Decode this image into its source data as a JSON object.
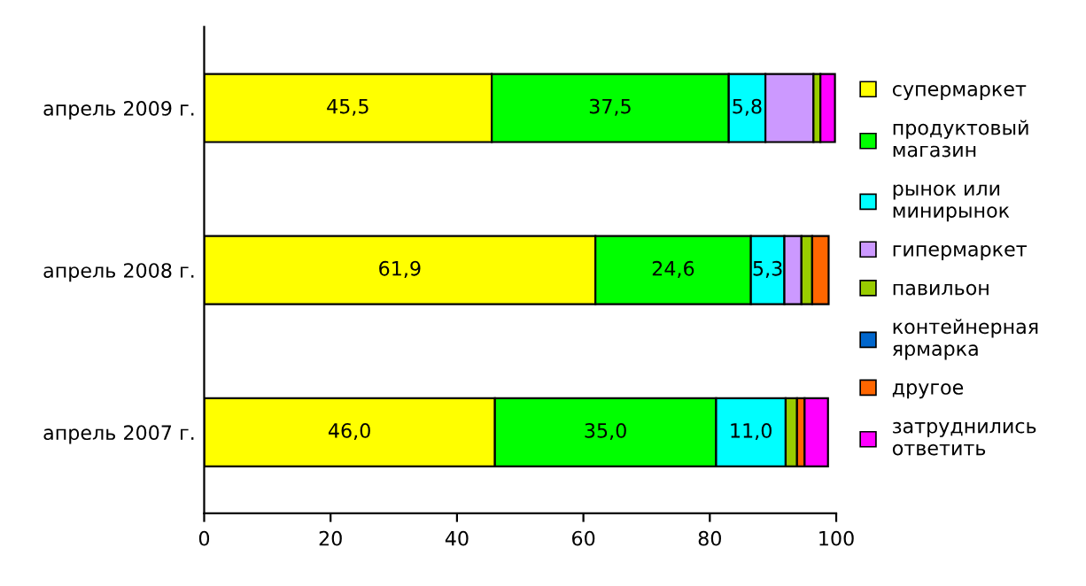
{
  "chart_data": {
    "type": "bar",
    "orientation": "horizontal",
    "stacked": true,
    "legend": "right",
    "grid": false,
    "categories": [
      "апрель 2009 г.",
      "апрель 2008 г.",
      "апрель 2007 г."
    ],
    "xlim": [
      0,
      100
    ],
    "xticks": [
      0,
      20,
      40,
      60,
      80,
      100
    ],
    "series": [
      {
        "name": "супермаркет",
        "color": "#ffff00",
        "values": [
          45.5,
          61.9,
          46.0
        ],
        "value_labels": [
          "45,5",
          "61,9",
          "46,0"
        ]
      },
      {
        "name": "продуктовый\nмагазин",
        "color": "#00ff00",
        "values": [
          37.5,
          24.6,
          35.0
        ],
        "value_labels": [
          "37,5",
          "24,6",
          "35,0"
        ]
      },
      {
        "name": "рынок или\nминирынок",
        "color": "#00ffff",
        "values": [
          5.8,
          5.3,
          11.0
        ],
        "value_labels": [
          "5,8",
          "5,3",
          "11,0"
        ]
      },
      {
        "name": "гипермаркет",
        "color": "#cc99ff",
        "values": [
          7.6,
          2.7,
          null
        ]
      },
      {
        "name": "павильон",
        "color": "#99cc00",
        "values": [
          1.1,
          1.7,
          1.8
        ]
      },
      {
        "name": "контейнерная\nярмарка",
        "color": "#0066cc",
        "values": [
          null,
          null,
          null
        ]
      },
      {
        "name": "другое",
        "color": "#ff6600",
        "values": [
          null,
          2.6,
          1.2
        ]
      },
      {
        "name": "затруднились\nответить",
        "color": "#ff00ff",
        "values": [
          2.3,
          null,
          3.7
        ]
      }
    ]
  }
}
